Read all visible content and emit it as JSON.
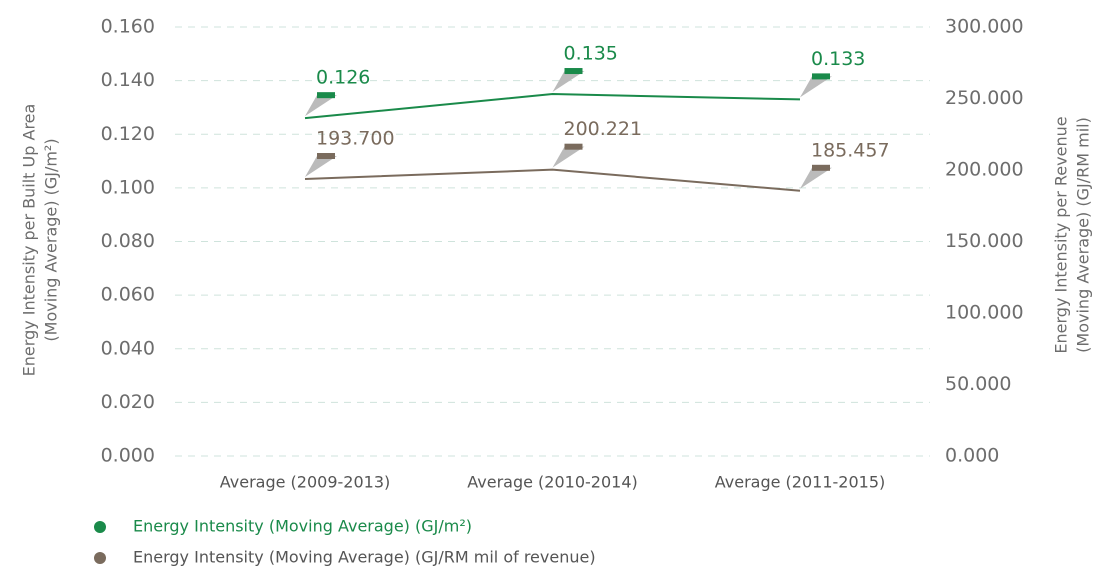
{
  "chart_data": {
    "type": "line",
    "categories": [
      "Average (2009-2013)",
      "Average (2010-2014)",
      "Average (2011-2015)"
    ],
    "series": [
      {
        "name": "Energy Intensity (Moving Average) (GJ/m²)",
        "color": "#1a8a4a",
        "values": [
          0.126,
          0.135,
          0.133
        ]
      },
      {
        "name": "Energy Intensity (Moving Average) (GJ/RM mil of revenue)",
        "color": "#7a6b5d",
        "values": [
          193.7,
          200.221,
          185.457
        ],
        "value_labels": [
          "193.700",
          "200.221",
          "185.457"
        ],
        "axis": "y2"
      }
    ],
    "ylabel": [
      "Energy Intensity per Built Up Area",
      "(Moving Average) (GJ/m²)"
    ],
    "y2label": [
      "Energy Intensity per Revenue",
      "(Moving Average) (GJ/RM mil)"
    ],
    "ylim": [
      0,
      0.16
    ],
    "yticks": [
      {
        "value": 0,
        "label": "0.000"
      },
      {
        "value": 0.02,
        "label": "0.020"
      },
      {
        "value": 0.04,
        "label": "0.040"
      },
      {
        "value": 0.06,
        "label": "0.060"
      },
      {
        "value": 0.08,
        "label": "0.080"
      },
      {
        "value": 0.1,
        "label": "0.100"
      },
      {
        "value": 0.12,
        "label": "0.120"
      },
      {
        "value": 0.14,
        "label": "0.140"
      },
      {
        "value": 0.16,
        "label": "0.160"
      }
    ],
    "y2lim": [
      0,
      300
    ],
    "y2ticks": [
      {
        "value": 0,
        "label": "0.000"
      },
      {
        "value": 50,
        "label": "50.000"
      },
      {
        "value": 100,
        "label": "100.000"
      },
      {
        "value": 150,
        "label": "150.000"
      },
      {
        "value": 200,
        "label": "200.000"
      },
      {
        "value": 250,
        "label": "250.000"
      },
      {
        "value": 300,
        "label": "300.000"
      }
    ],
    "grid": true
  }
}
